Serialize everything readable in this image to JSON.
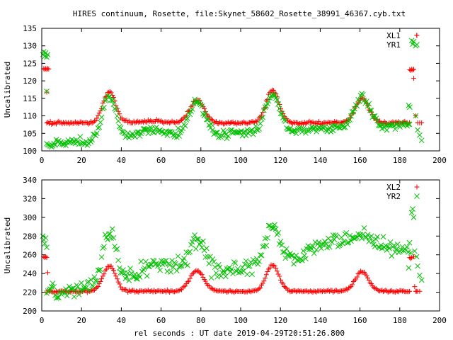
{
  "figure": {
    "title": "HIRES continuum, Rosette, file:Skynet_58602_Rosette_38991_46367.cyb.txt",
    "xlabel": "rel seconds : UT date 2019-04-29T20:51:26.800"
  },
  "chart_data": [
    {
      "type": "scatter",
      "title": "HIRES continuum, Rosette, file:Skynet_58602_Rosette_38991_46367.cyb.txt",
      "xlabel": "",
      "ylabel": "Uncalibrated",
      "xlim": [
        0,
        200
      ],
      "ylim": [
        100,
        135
      ],
      "xticks": [
        0,
        20,
        40,
        60,
        80,
        100,
        120,
        140,
        160,
        180,
        200
      ],
      "yticks": [
        100,
        105,
        110,
        115,
        120,
        125,
        130,
        135
      ],
      "legend_position": "top-right",
      "series": [
        {
          "name": "XL1",
          "marker": "plus",
          "color": "#ff0000",
          "baseline": 108,
          "peaks": [
            [
              34,
              9,
              3.2
            ],
            [
              78,
              6.5,
              3.6
            ],
            [
              116,
              9.5,
              3.2
            ],
            [
              161,
              7,
              3.4
            ]
          ],
          "bumps": [
            [
              56,
              0.5,
              6
            ]
          ],
          "x_range": [
            2.5,
            185
          ],
          "noise": 0.3,
          "extra_points": [
            [
              1,
              123.5
            ],
            [
              1.5,
              123.3
            ],
            [
              2,
              123.5
            ],
            [
              2.5,
              123.3
            ],
            [
              3,
              123.5
            ],
            [
              3.5,
              123.4
            ],
            [
              2.5,
              116.8
            ],
            [
              185,
              123.2
            ],
            [
              185.5,
              123
            ],
            [
              186,
              123.3
            ],
            [
              186.5,
              123.1
            ],
            [
              187,
              123.3
            ],
            [
              187,
              120.7
            ],
            [
              188,
              110
            ],
            [
              188.5,
              133
            ],
            [
              189,
              108
            ],
            [
              190,
              108
            ],
            [
              191,
              108
            ]
          ]
        },
        {
          "name": "YR1",
          "marker": "cross",
          "color": "#00c000",
          "baseline": 102,
          "baseline_slope": 0.03,
          "peaks": [
            [
              34,
              12.5,
              3.5
            ],
            [
              78,
              10,
              4
            ],
            [
              116,
              11,
              3.6
            ],
            [
              161,
              8.5,
              3.8
            ]
          ],
          "bumps": [
            [
              55,
              2.5,
              7
            ]
          ],
          "x_range": [
            2.5,
            185
          ],
          "noise": 0.8,
          "extra_points": [
            [
              0.5,
              127.5
            ],
            [
              1,
              128.3
            ],
            [
              1.5,
              127
            ],
            [
              2,
              128
            ],
            [
              2.5,
              126.8
            ],
            [
              3,
              127.5
            ],
            [
              2.5,
              117
            ],
            [
              184.5,
              113
            ],
            [
              185,
              112.5
            ],
            [
              186,
              131.5
            ],
            [
              186.5,
              130.5
            ],
            [
              187,
              131.2
            ],
            [
              188,
              130
            ],
            [
              188,
              110
            ],
            [
              189,
              106
            ],
            [
              190,
              104.5
            ],
            [
              191,
              103
            ]
          ]
        }
      ]
    },
    {
      "type": "scatter",
      "title": "",
      "xlabel": "rel seconds : UT date 2019-04-29T20:51:26.800",
      "ylabel": "Uncalibrated",
      "xlim": [
        0,
        200
      ],
      "ylim": [
        200,
        340
      ],
      "xticks": [
        0,
        20,
        40,
        60,
        80,
        100,
        120,
        140,
        160,
        180,
        200
      ],
      "yticks": [
        200,
        220,
        240,
        260,
        280,
        300,
        320,
        340
      ],
      "legend_position": "top-right",
      "series": [
        {
          "name": "XL2",
          "marker": "plus",
          "color": "#ff0000",
          "baseline": 221,
          "peaks": [
            [
              34,
              27,
              3.2
            ],
            [
              78,
              22,
              3.6
            ],
            [
              116,
              28,
              3.2
            ],
            [
              161,
              21,
              3.4
            ]
          ],
          "bumps": [],
          "x_range": [
            2.5,
            185
          ],
          "noise": 0.8,
          "extra_points": [
            [
              1,
              258
            ],
            [
              1.5,
              257
            ],
            [
              2,
              258
            ],
            [
              2.5,
              257
            ],
            [
              3,
              241
            ],
            [
              185,
              257
            ],
            [
              185.5,
              256
            ],
            [
              186,
              257
            ],
            [
              187,
              258
            ],
            [
              187.5,
              226
            ],
            [
              188,
              221
            ],
            [
              188.5,
              221
            ],
            [
              189,
              221
            ],
            [
              190,
              221
            ]
          ]
        },
        {
          "name": "YR2",
          "marker": "cross",
          "color": "#00c000",
          "baseline": 220,
          "baseline_slope": 0.25,
          "peaks": [
            [
              34,
              55,
              3.5
            ],
            [
              78,
              35,
              4
            ],
            [
              116,
              40,
              3.6
            ],
            [
              161,
              8,
              4
            ]
          ],
          "bumps": [
            [
              58,
              15,
              9
            ],
            [
              150,
              20,
              14
            ]
          ],
          "x_range": [
            2.5,
            185
          ],
          "noise": 6,
          "extra_points": [
            [
              0.5,
              280
            ],
            [
              1,
              276
            ],
            [
              1.5,
              272
            ],
            [
              2,
              278
            ],
            [
              2.5,
              268
            ],
            [
              184.5,
              246
            ],
            [
              185.5,
              262
            ],
            [
              186,
              305
            ],
            [
              186.5,
              309
            ],
            [
              187,
              300
            ],
            [
              187.5,
              264
            ],
            [
              188.5,
              258
            ],
            [
              189,
              248
            ],
            [
              190,
              238
            ],
            [
              191,
              233
            ]
          ]
        }
      ]
    }
  ]
}
